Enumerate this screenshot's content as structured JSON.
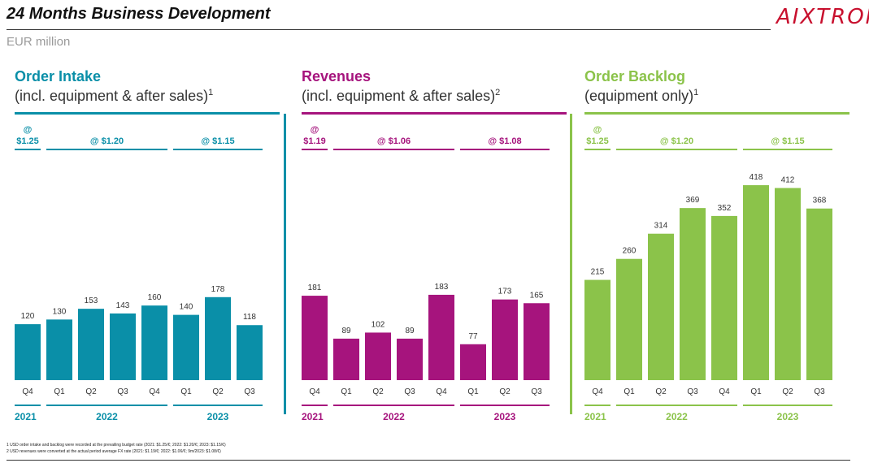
{
  "header": {
    "title": "24 Months Business Development",
    "unit": "EUR million",
    "logo_text": "AIXTRON"
  },
  "colors": {
    "order_intake": "#0a8fa8",
    "revenues": "#a6147d",
    "order_backlog": "#8bc34a",
    "logo": "#c8102e"
  },
  "panels": [
    {
      "key": "order_intake",
      "title": "Order Intake",
      "subtitle": "(incl. equipment & after sales)",
      "subtitle_sup": "1",
      "fx_labels": [
        "@ $1.25",
        "@ $1.20",
        "@ $1.15"
      ],
      "year_labels": [
        "2021",
        "2022",
        "2023"
      ]
    },
    {
      "key": "revenues",
      "title": "Revenues",
      "subtitle": "(incl. equipment & after sales)",
      "subtitle_sup": "2",
      "fx_labels": [
        "@ $1.19",
        "@ $1.06",
        "@ $1.08"
      ],
      "year_labels": [
        "2021",
        "2022",
        "2023"
      ]
    },
    {
      "key": "order_backlog",
      "title": "Order Backlog",
      "subtitle": "(equipment only)",
      "subtitle_sup": "1",
      "fx_labels": [
        "@ $1.25",
        "@ $1.20",
        "@ $1.15"
      ],
      "year_labels": [
        "2021",
        "2022",
        "2023"
      ]
    }
  ],
  "chart_data": [
    {
      "type": "bar",
      "title": "Order Intake",
      "categories": [
        "Q4",
        "Q1",
        "Q2",
        "Q3",
        "Q4",
        "Q1",
        "Q2",
        "Q3"
      ],
      "values": [
        120,
        130,
        153,
        143,
        160,
        140,
        178,
        118
      ]
    },
    {
      "type": "bar",
      "title": "Revenues",
      "categories": [
        "Q4",
        "Q1",
        "Q2",
        "Q3",
        "Q4",
        "Q1",
        "Q2",
        "Q3"
      ],
      "values": [
        181,
        89,
        102,
        89,
        183,
        77,
        173,
        165
      ]
    },
    {
      "type": "bar",
      "title": "Order Backlog",
      "categories": [
        "Q4",
        "Q1",
        "Q2",
        "Q3",
        "Q4",
        "Q1",
        "Q2",
        "Q3"
      ],
      "values": [
        215,
        260,
        314,
        369,
        352,
        418,
        412,
        368
      ]
    }
  ],
  "footnotes": [
    "1 USD order intake and backlog were recorded at the prevailing budget rate (2021: $1.25/€; 2022: $1.20/€; 2023: $1.15/€)",
    "2 USD revenues were converted at the actual period average FX rate (2021: $1.19/€; 2022: $1.06/€; 9m/2023: $1.08/€)"
  ]
}
